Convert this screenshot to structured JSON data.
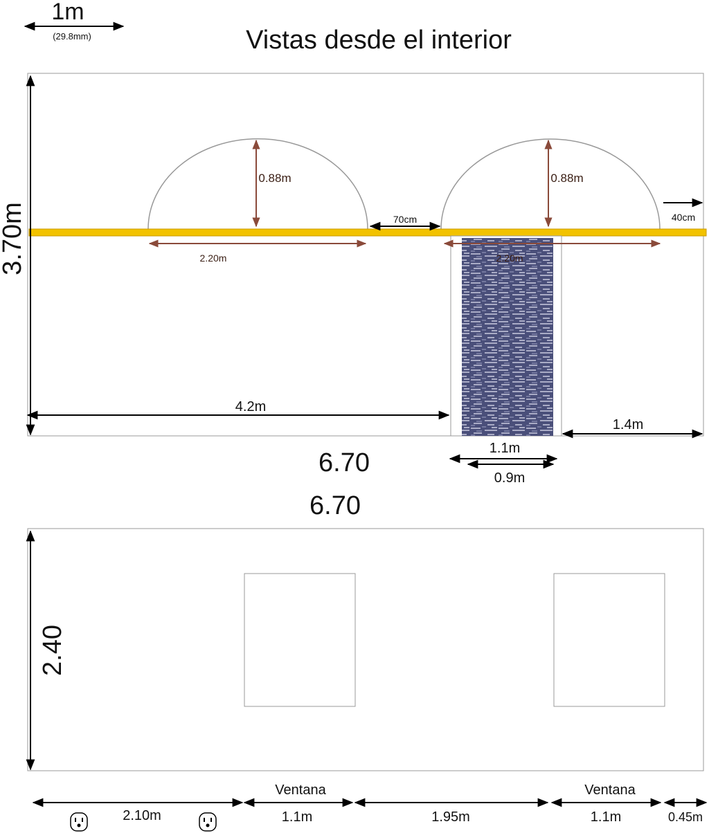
{
  "scale": {
    "label": "1m",
    "note": "(29.8mm)"
  },
  "title": "Vistas desde el interior",
  "top_view": {
    "height": "3.70m",
    "arch_heights": [
      "0.88m",
      "0.88m"
    ],
    "arch_gap": "70cm",
    "right_margin": "40cm",
    "arch_widths": [
      "2.20m",
      "2.20m"
    ],
    "left_distance": "4.2m",
    "right_distance": "1.4m",
    "width": "6.70",
    "door_outer": "1.1m",
    "door_inner": "0.9m"
  },
  "bottom_view": {
    "width": "6.70",
    "height": "2.40",
    "window_labels": [
      "Ventana",
      "Ventana"
    ],
    "segments": [
      "2.10m",
      "1.1m",
      "1.95m",
      "1.1m",
      "0.45m"
    ]
  }
}
